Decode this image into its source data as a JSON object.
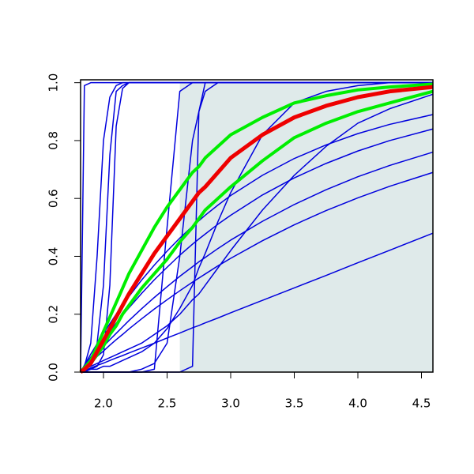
{
  "chart_data": {
    "type": "line",
    "x": [
      1.82,
      1.85,
      1.9,
      1.95,
      2.0,
      2.05,
      2.1,
      2.15,
      2.2,
      2.3,
      2.4,
      2.5,
      2.6,
      2.7,
      2.75,
      2.8,
      2.9,
      3.0,
      3.25,
      3.5,
      3.75,
      4.0,
      4.25,
      4.59
    ],
    "xlim": [
      1.82,
      4.59
    ],
    "xticks": [
      {
        "value": 2,
        "label": "2.0"
      },
      2.5,
      {
        "value": 3,
        "label": "3.0"
      },
      3.5,
      {
        "value": 4,
        "label": "4.0"
      },
      4.5
    ],
    "ylim": [
      0,
      1.01
    ],
    "yticks": [
      {
        "value": 0,
        "label": "0.0"
      },
      0.2,
      0.4,
      0.6,
      0.8,
      {
        "value": 1,
        "label": "1.0"
      }
    ],
    "shaded_region": {
      "x": [
        2.6,
        4.59
      ],
      "y": [
        0,
        1
      ],
      "color": "#dfeaea"
    },
    "series": [
      {
        "color": "#0000dd",
        "line_width": 1.5,
        "values": [
          0,
          0.99,
          1,
          1,
          1,
          1,
          1,
          1,
          1,
          1,
          1,
          1,
          1,
          1,
          1,
          1,
          1,
          1,
          1,
          1,
          1,
          1,
          1,
          1
        ]
      },
      {
        "color": "#0000dd",
        "line_width": 1.5,
        "values": [
          0,
          0.02,
          0.1,
          0.4,
          0.8,
          0.95,
          0.99,
          1,
          1,
          1,
          1,
          1,
          1,
          1,
          1,
          1,
          1,
          1,
          1,
          1,
          1,
          1,
          1,
          1
        ]
      },
      {
        "color": "#0000dd",
        "line_width": 1.5,
        "values": [
          0,
          0.01,
          0.03,
          0.1,
          0.3,
          0.75,
          0.97,
          0.99,
          1,
          1,
          1,
          1,
          1,
          1,
          1,
          1,
          1,
          1,
          1,
          1,
          1,
          1,
          1,
          1
        ]
      },
      {
        "color": "#0000dd",
        "line_width": 1.5,
        "values": [
          0,
          0,
          0.01,
          0.02,
          0.06,
          0.3,
          0.85,
          0.98,
          1,
          1,
          1,
          1,
          1,
          1,
          1,
          1,
          1,
          1,
          1,
          1,
          1,
          1,
          1,
          1
        ]
      },
      {
        "color": "#0000dd",
        "line_width": 1.5,
        "values": [
          0,
          0,
          0,
          0,
          0,
          0,
          0,
          0,
          0,
          0,
          0.01,
          0.5,
          0.97,
          1,
          1,
          1,
          1,
          1,
          1,
          1,
          1,
          1,
          1,
          1
        ]
      },
      {
        "color": "#0000dd",
        "line_width": 1.5,
        "values": [
          0,
          0,
          0,
          0,
          0,
          0,
          0,
          0,
          0,
          0,
          0,
          0,
          0,
          0.02,
          0.9,
          1,
          1,
          1,
          1,
          1,
          1,
          1,
          1,
          1
        ]
      },
      {
        "color": "#0000dd",
        "line_width": 1.5,
        "values": [
          0,
          0,
          0,
          0,
          0,
          0,
          0,
          0,
          0,
          0.01,
          0.03,
          0.1,
          0.4,
          0.8,
          0.9,
          0.97,
          1,
          1,
          1,
          1,
          1,
          1,
          1,
          1
        ]
      },
      {
        "color": "#0000dd",
        "line_width": 1.5,
        "values": [
          0,
          0.005,
          0.014,
          0.023,
          0.031,
          0.04,
          0.049,
          0.057,
          0.066,
          0.083,
          0.1,
          0.118,
          0.135,
          0.153,
          0.161,
          0.17,
          0.187,
          0.205,
          0.248,
          0.291,
          0.334,
          0.378,
          0.421,
          0.48
        ]
      },
      {
        "color": "#0000dd",
        "line_width": 1.5,
        "values": [
          0,
          0.013,
          0.033,
          0.054,
          0.073,
          0.093,
          0.112,
          0.13,
          0.149,
          0.184,
          0.218,
          0.25,
          0.281,
          0.311,
          0.325,
          0.339,
          0.367,
          0.393,
          0.454,
          0.509,
          0.558,
          0.602,
          0.642,
          0.69
        ]
      },
      {
        "color": "#0000dd",
        "line_width": 1.5,
        "values": [
          0,
          0.015,
          0.04,
          0.065,
          0.089,
          0.112,
          0.134,
          0.156,
          0.178,
          0.219,
          0.258,
          0.295,
          0.331,
          0.364,
          0.381,
          0.396,
          0.427,
          0.456,
          0.521,
          0.579,
          0.63,
          0.675,
          0.714,
          0.76
        ]
      },
      {
        "color": "#0000dd",
        "line_width": 1.5,
        "values": [
          0,
          0.02,
          0.052,
          0.082,
          0.112,
          0.141,
          0.169,
          0.196,
          0.222,
          0.272,
          0.319,
          0.362,
          0.404,
          0.442,
          0.46,
          0.477,
          0.511,
          0.542,
          0.612,
          0.671,
          0.721,
          0.764,
          0.8,
          0.84
        ]
      },
      {
        "color": "#0000dd",
        "line_width": 1.5,
        "values": [
          0,
          0.024,
          0.062,
          0.098,
          0.134,
          0.167,
          0.2,
          0.231,
          0.261,
          0.318,
          0.37,
          0.418,
          0.463,
          0.504,
          0.523,
          0.542,
          0.577,
          0.61,
          0.68,
          0.738,
          0.785,
          0.824,
          0.856,
          0.89
        ]
      },
      {
        "color": "#0000dd",
        "line_width": 1.5,
        "values": [
          0,
          0.005,
          0.01,
          0.01,
          0.02,
          0.02,
          0.03,
          0.04,
          0.05,
          0.07,
          0.1,
          0.15,
          0.22,
          0.3,
          0.36,
          0.41,
          0.52,
          0.62,
          0.82,
          0.93,
          0.97,
          0.99,
          1,
          1
        ]
      },
      {
        "color": "#0000dd",
        "line_width": 1.5,
        "values": [
          0,
          0.01,
          0.02,
          0.03,
          0.04,
          0.05,
          0.06,
          0.07,
          0.08,
          0.1,
          0.13,
          0.16,
          0.2,
          0.25,
          0.27,
          0.3,
          0.36,
          0.42,
          0.56,
          0.68,
          0.78,
          0.86,
          0.91,
          0.96
        ]
      },
      {
        "color": "#00ee00",
        "line_width": 4,
        "values": [
          0,
          0.015,
          0.04,
          0.09,
          0.14,
          0.19,
          0.24,
          0.29,
          0.34,
          0.42,
          0.5,
          0.57,
          0.63,
          0.69,
          0.71,
          0.74,
          0.78,
          0.82,
          0.88,
          0.93,
          0.955,
          0.975,
          0.985,
          0.995
        ]
      },
      {
        "color": "#00ee00",
        "line_width": 4,
        "values": [
          0,
          0.01,
          0.03,
          0.06,
          0.09,
          0.13,
          0.16,
          0.2,
          0.23,
          0.29,
          0.34,
          0.39,
          0.45,
          0.5,
          0.53,
          0.56,
          0.6,
          0.64,
          0.73,
          0.81,
          0.86,
          0.9,
          0.93,
          0.97
        ]
      },
      {
        "color": "#ee0000",
        "line_width": 5,
        "values": [
          0,
          0.01,
          0.03,
          0.07,
          0.11,
          0.15,
          0.19,
          0.23,
          0.27,
          0.34,
          0.41,
          0.47,
          0.53,
          0.59,
          0.62,
          0.64,
          0.69,
          0.74,
          0.82,
          0.88,
          0.92,
          0.95,
          0.97,
          0.985
        ]
      }
    ]
  }
}
